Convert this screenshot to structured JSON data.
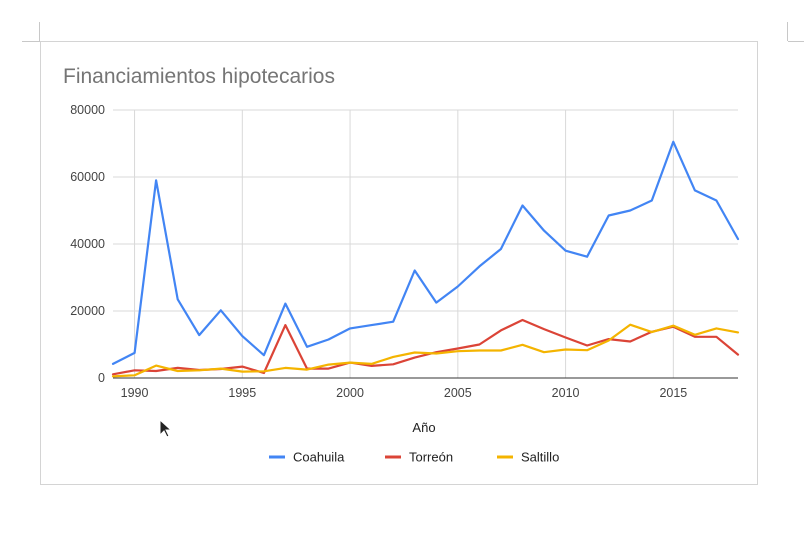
{
  "chart_data": {
    "type": "line",
    "title": "Financiamientos hipotecarios",
    "xlabel": "Año",
    "ylabel": "",
    "xlim": [
      1989,
      2018
    ],
    "ylim": [
      0,
      80000
    ],
    "yticks": [
      0,
      20000,
      40000,
      60000,
      80000
    ],
    "xticks": [
      1990,
      1995,
      2000,
      2005,
      2010,
      2015
    ],
    "grid": true,
    "legend_position": "bottom",
    "x": [
      1989,
      1990,
      1991,
      1992,
      1993,
      1994,
      1995,
      1996,
      1997,
      1998,
      1999,
      2000,
      2001,
      2002,
      2003,
      2004,
      2005,
      2006,
      2007,
      2008,
      2009,
      2010,
      2011,
      2012,
      2013,
      2014,
      2015,
      2016,
      2017,
      2018
    ],
    "series": [
      {
        "name": "Coahuila",
        "color": "#4285f4",
        "values": [
          4200,
          7500,
          59000,
          23500,
          12800,
          20200,
          12500,
          6800,
          22200,
          9300,
          11500,
          14800,
          15800,
          16800,
          32100,
          22500,
          27300,
          33300,
          38500,
          51500,
          44000,
          38000,
          36200,
          48500,
          50000,
          53000,
          70500,
          56000,
          53000,
          41500
        ]
      },
      {
        "name": "Torreón",
        "color": "#db4437",
        "values": [
          1100,
          2300,
          2100,
          3000,
          2400,
          2700,
          3400,
          1500,
          15800,
          2800,
          2800,
          4600,
          3600,
          4100,
          6100,
          7700,
          8800,
          10000,
          14200,
          17300,
          14600,
          12100,
          9700,
          11600,
          10900,
          13800,
          15300,
          12300,
          12300,
          7000
        ]
      },
      {
        "name": "Saltillo",
        "color": "#f4b400",
        "values": [
          500,
          800,
          3700,
          2100,
          2300,
          2800,
          1900,
          2000,
          3000,
          2500,
          4000,
          4600,
          4200,
          6300,
          7600,
          7300,
          8000,
          8200,
          8200,
          9900,
          7700,
          8500,
          8300,
          11200,
          15900,
          13700,
          15600,
          12900,
          14800,
          13600
        ]
      }
    ]
  }
}
